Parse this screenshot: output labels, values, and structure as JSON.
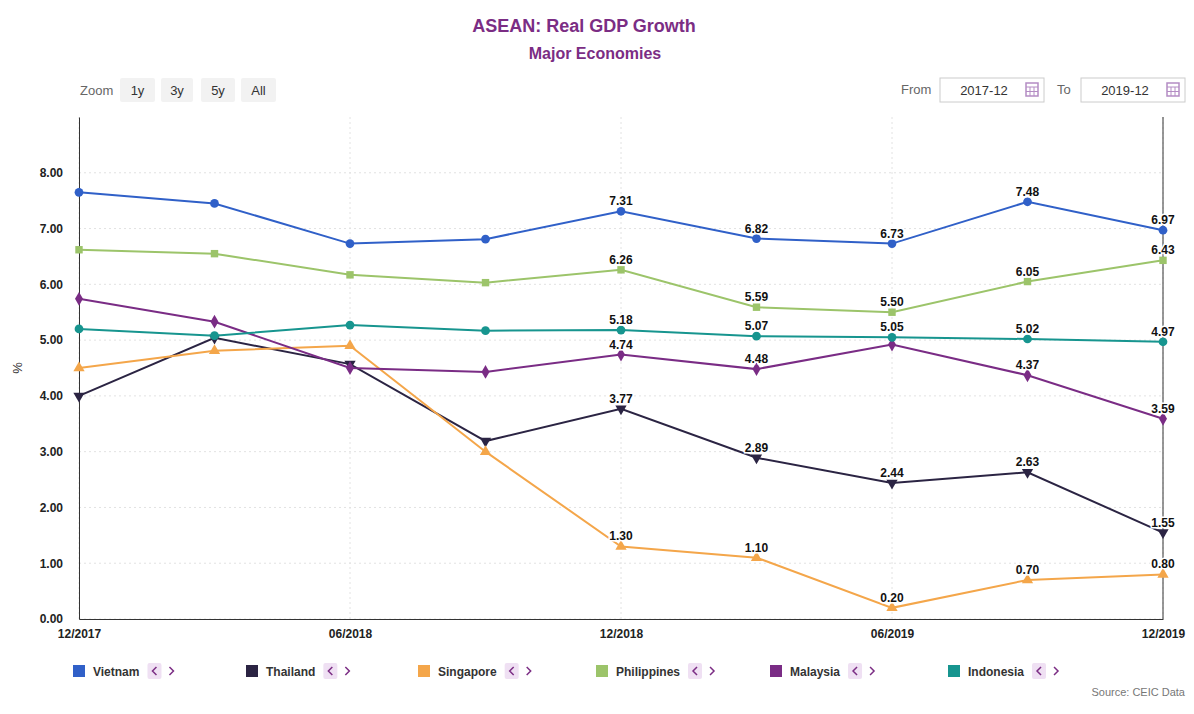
{
  "chart_data": {
    "type": "line",
    "title": "ASEAN: Real GDP Growth",
    "subtitle": "Major Economies",
    "y_label": "%",
    "categories": [
      "12/2017",
      null,
      "06/2018",
      null,
      "12/2018",
      null,
      "06/2019",
      null,
      "12/2019"
    ],
    "ylim": [
      0,
      9
    ],
    "yticks": [
      {
        "value": 0,
        "label": "0.00"
      },
      {
        "value": 1,
        "label": "1.00"
      },
      {
        "value": 2,
        "label": "2.00"
      },
      {
        "value": 3,
        "label": "3.00"
      },
      {
        "value": 4,
        "label": "4.00"
      },
      {
        "value": 5,
        "label": "5.00"
      },
      {
        "value": 6,
        "label": "6.00"
      },
      {
        "value": 7,
        "label": "7.00"
      },
      {
        "value": 8,
        "label": "8.00"
      }
    ],
    "grid": true,
    "legend": "bottom",
    "data_labels": true,
    "series": [
      {
        "name": "Vietnam",
        "color": "#3060c8",
        "marker": "circle",
        "values": [
          7.65,
          7.45,
          6.73,
          6.81,
          7.31,
          6.82,
          6.73,
          7.48,
          6.97
        ],
        "value_labels": [
          null,
          null,
          null,
          null,
          "7.31",
          "6.82",
          "6.73",
          "7.48",
          "6.97"
        ]
      },
      {
        "name": "Thailand",
        "color": "#2b2443",
        "marker": "triangle-down",
        "values": [
          4.0,
          5.04,
          4.57,
          3.19,
          3.77,
          2.89,
          2.44,
          2.63,
          1.55
        ],
        "value_labels": [
          null,
          null,
          null,
          null,
          "3.77",
          "2.89",
          "2.44",
          "2.63",
          "1.55"
        ]
      },
      {
        "name": "Singapore",
        "color": "#f4a64a",
        "marker": "triangle",
        "values": [
          4.5,
          4.81,
          4.9,
          3.0,
          1.3,
          1.1,
          0.2,
          0.7,
          0.8
        ],
        "value_labels": [
          null,
          null,
          null,
          null,
          "1.30",
          "1.10",
          "0.20",
          "0.70",
          "0.80"
        ]
      },
      {
        "name": "Philippines",
        "color": "#9cc46a",
        "marker": "square",
        "values": [
          6.62,
          6.55,
          6.17,
          6.03,
          6.26,
          5.59,
          5.5,
          6.05,
          6.43
        ],
        "value_labels": [
          null,
          null,
          null,
          null,
          "6.26",
          "5.59",
          "5.50",
          "6.05",
          "6.43"
        ]
      },
      {
        "name": "Malaysia",
        "color": "#7a2c85",
        "marker": "diamond",
        "values": [
          5.74,
          5.33,
          4.5,
          4.43,
          4.74,
          4.48,
          4.92,
          4.37,
          3.59
        ],
        "value_labels": [
          null,
          null,
          null,
          null,
          "4.74",
          "4.48",
          null,
          "4.37",
          "3.59"
        ]
      },
      {
        "name": "Indonesia",
        "color": "#17958f",
        "marker": "circle",
        "values": [
          5.2,
          5.08,
          5.27,
          5.17,
          5.18,
          5.07,
          5.05,
          5.02,
          4.97
        ],
        "value_labels": [
          null,
          null,
          null,
          null,
          "5.18",
          "5.07",
          "5.05",
          "5.02",
          "4.97"
        ]
      }
    ]
  },
  "page": {
    "zoom_label": "Zoom",
    "zoom_buttons": [
      "1y",
      "3y",
      "5y",
      "All"
    ],
    "from_label": "From",
    "from_value": "2017-12",
    "to_label": "To",
    "to_value": "2019-12",
    "source": "Source: CEIC Data"
  }
}
